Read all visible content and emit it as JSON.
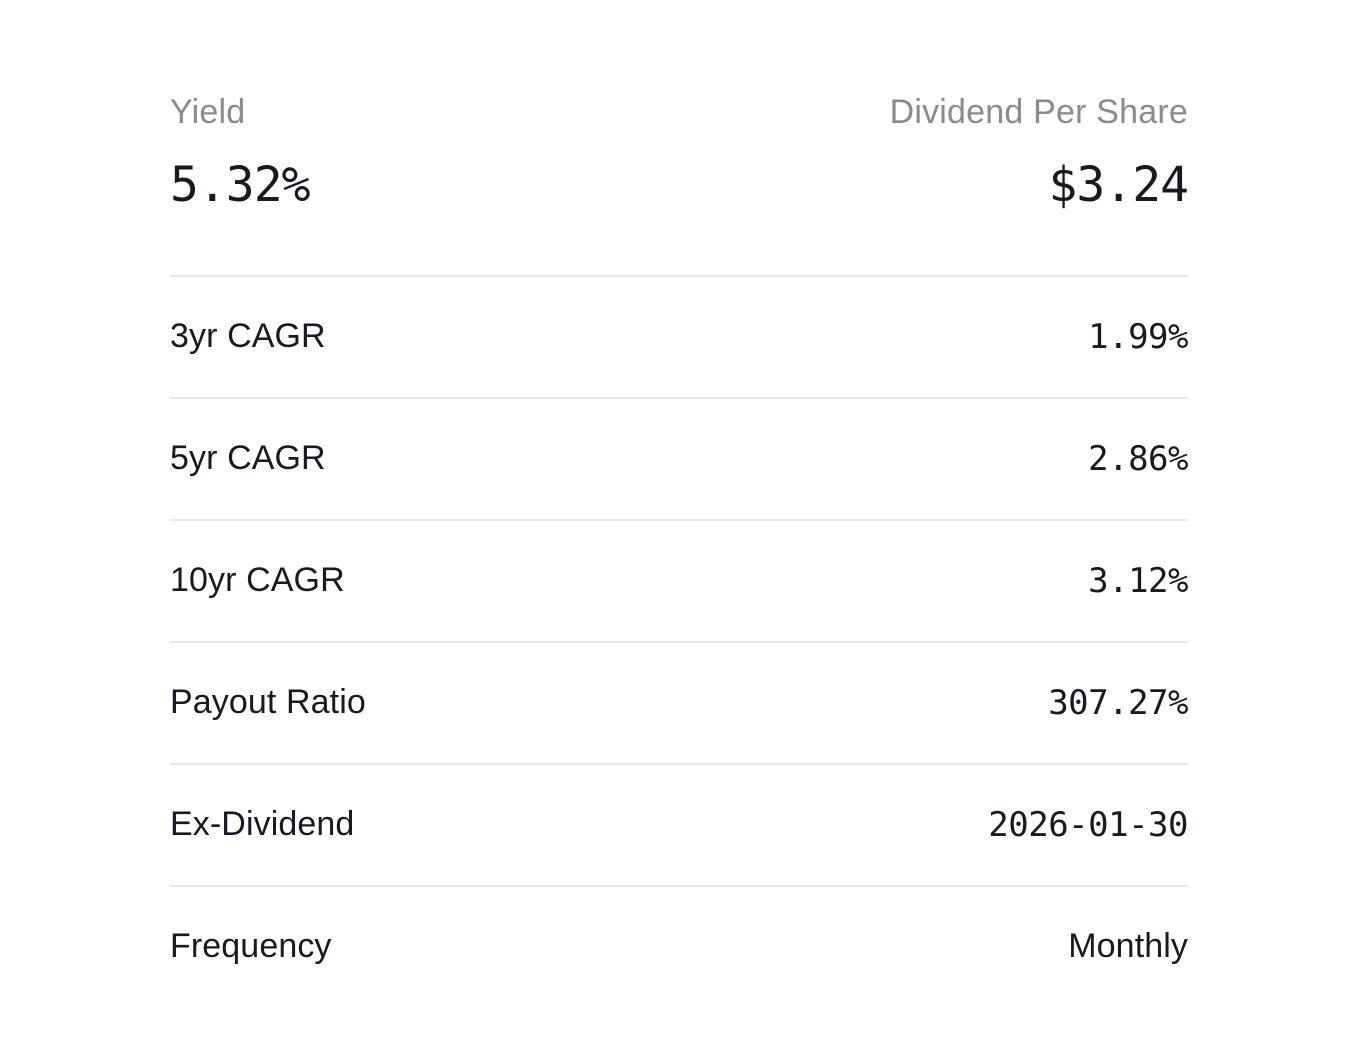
{
  "dividend_panel": {
    "columns": {
      "left_label": "Yield",
      "right_label": "Dividend Per Share"
    },
    "summary": {
      "yield_value": "5.32%",
      "dividend_per_share_value": "$3.24"
    },
    "metrics": [
      {
        "label": "3yr CAGR",
        "value": "1.99%"
      },
      {
        "label": "5yr CAGR",
        "value": "2.86%"
      },
      {
        "label": "10yr CAGR",
        "value": "3.12%"
      },
      {
        "label": "Payout Ratio",
        "value": "307.27%"
      },
      {
        "label": "Ex-Dividend",
        "value": "2026-01-30"
      },
      {
        "label": "Frequency",
        "value": "Monthly"
      }
    ],
    "colors": {
      "background": "#ffffff",
      "text_primary": "#171a21",
      "text_muted": "#8b8b8b",
      "divider": "#e8e8e8"
    }
  }
}
